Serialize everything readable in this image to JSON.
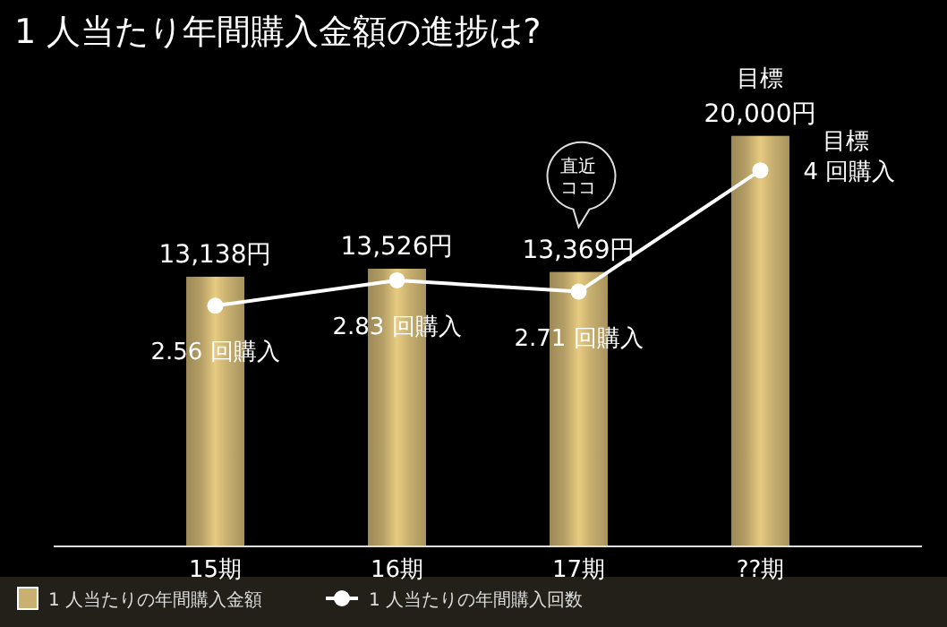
{
  "chart_data": {
    "type": "bar",
    "title": "1 人当たり年間購入金額の進捗は?",
    "categories": [
      "15期",
      "16期",
      "17期",
      "??期"
    ],
    "series": [
      {
        "name": "1 人当たりの年間購入金額",
        "color": "#c8b070",
        "values": [
          13138,
          13526,
          13369,
          20000
        ],
        "value_labels": [
          "13,138円",
          "13,526円",
          "13,369円",
          "20,000円"
        ]
      },
      {
        "name": "1 人当たりの年間購入回数",
        "type": "line",
        "axis": "y2",
        "color": "#ffffff",
        "values": [
          2.56,
          2.83,
          2.71,
          4
        ],
        "value_labels": [
          "2.56 回購入",
          "2.83 回購入",
          "2.71 回購入",
          "4 回購入"
        ]
      }
    ],
    "tick_labels": "x",
    "marker": "circle",
    "legend": "bottom left",
    "annotations": [
      "目標",
      "目標",
      "直近ココ"
    ]
  }
}
